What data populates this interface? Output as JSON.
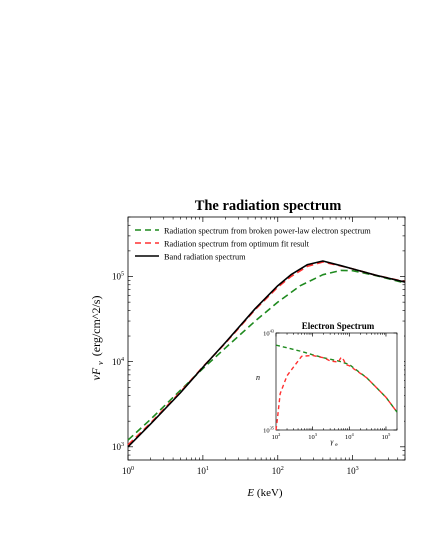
{
  "chart_data": [
    {
      "type": "line",
      "title": "The radiation spectrum",
      "xlabel_var": "E",
      "xlabel_unit": "(keV)",
      "ylabel_var": "νF",
      "ylabel_sub": "ν",
      "ylabel_unit": "(erg/cm^2/s)",
      "xscale": "log",
      "yscale": "log",
      "xlim": [
        1,
        5000
      ],
      "ylim": [
        700,
        500000
      ],
      "x_ticks": [
        {
          "value": 1,
          "mant": "10",
          "exp": "0"
        },
        {
          "value": 10,
          "mant": "10",
          "exp": "1"
        },
        {
          "value": 100,
          "mant": "10",
          "exp": "2"
        },
        {
          "value": 1000,
          "mant": "10",
          "exp": "3"
        }
      ],
      "y_ticks": [
        {
          "value": 1000,
          "mant": "10",
          "exp": "3"
        },
        {
          "value": 10000,
          "mant": "10",
          "exp": "4"
        },
        {
          "value": 100000,
          "mant": "10",
          "exp": "5"
        }
      ],
      "legend_position": "top-left",
      "series": [
        {
          "name": "Radiation spectrum from broken power-law electron spectrum",
          "color": "#1f8a1f",
          "dash": "dashed",
          "x": [
            1,
            2,
            5,
            10,
            20,
            50,
            100,
            200,
            400,
            700,
            1000,
            2000,
            5000
          ],
          "y": [
            1200,
            2100,
            4600,
            8300,
            14500,
            30000,
            50000,
            78000,
            105000,
            118000,
            117000,
            103000,
            84000
          ]
        },
        {
          "name": "Radiation spectrum from optimum fit result",
          "color": "#ff3030",
          "dash": "dashed",
          "x": [
            1,
            2,
            5,
            10,
            20,
            50,
            100,
            150,
            250,
            400,
            700,
            1000,
            2000,
            5000
          ],
          "y": [
            1050,
            1900,
            4400,
            8700,
            16500,
            41000,
            75000,
            100000,
            132000,
            148000,
            133000,
            123000,
            104000,
            87000
          ]
        },
        {
          "name": "Band radiation spectrum",
          "color": "#000000",
          "dash": "solid",
          "x": [
            1,
            2,
            5,
            10,
            20,
            50,
            100,
            150,
            250,
            400,
            700,
            1000,
            2000,
            5000
          ],
          "y": [
            1000,
            1850,
            4300,
            8600,
            16800,
            42000,
            78000,
            105000,
            138000,
            152000,
            134000,
            123000,
            104000,
            86000
          ]
        }
      ]
    },
    {
      "type": "line",
      "title": "Electron Spectrum",
      "xlabel_var": "γ",
      "xlabel_sub": "e",
      "ylabel": "n",
      "xscale": "log",
      "yscale": "log",
      "xlim": [
        100,
        200000
      ],
      "ylim": [
        1e+35,
        1e+43
      ],
      "x_ticks": [
        {
          "value": 100,
          "mant": "10",
          "exp": "2"
        },
        {
          "value": 1000,
          "mant": "10",
          "exp": "3"
        },
        {
          "value": 10000,
          "mant": "10",
          "exp": "4"
        },
        {
          "value": 100000,
          "mant": "10",
          "exp": "5"
        }
      ],
      "y_ticks": [
        {
          "value": 1e+35,
          "mant": "10",
          "exp": "35"
        },
        {
          "value": 1e+43,
          "mant": "10",
          "exp": "43"
        }
      ],
      "series": [
        {
          "color": "#1f8a1f",
          "dash": "dashed",
          "x": [
            100,
            200,
            500,
            1000,
            2000,
            5000,
            10000,
            30000,
            100000,
            200000
          ],
          "y": [
            1e+42,
            6e+41,
            3e+41,
            1.6e+41,
            9e+40,
            5e+40,
            2.5e+40,
            2e+39,
            5e+37,
            3e+36
          ]
        },
        {
          "color": "#ff3030",
          "dash": "dashed",
          "x": [
            100,
            110,
            130,
            200,
            500,
            1000,
            2000,
            3000,
            5000,
            6000,
            7000,
            8000,
            10000,
            30000,
            100000,
            200000
          ],
          "y": [
            1e+35,
            1e+36,
            1e+38,
            3e+39,
            1.2e+41,
            1.4e+41,
            9e+40,
            5e+40,
            4e+40,
            1e+41,
            6e+40,
            2.5e+40,
            2e+40,
            2e+39,
            5e+37,
            3e+36
          ]
        }
      ]
    }
  ]
}
